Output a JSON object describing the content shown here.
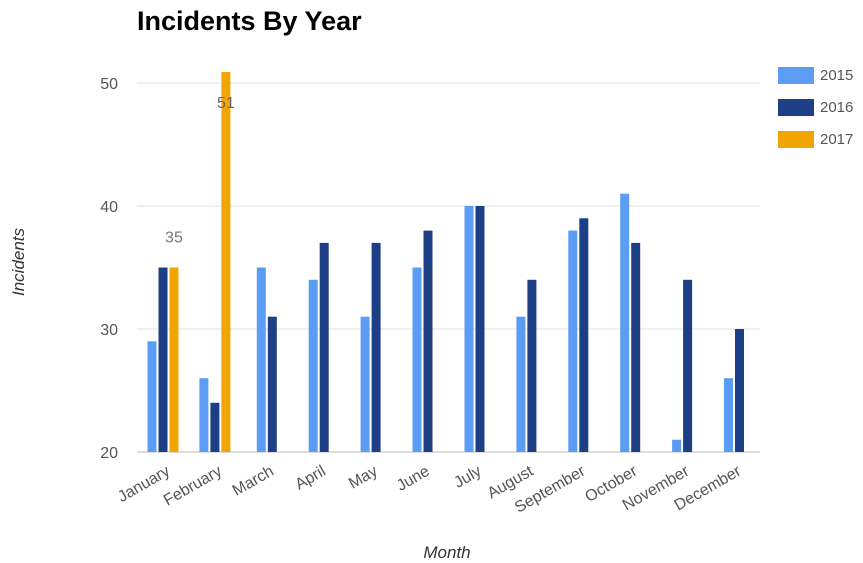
{
  "chart_data": {
    "type": "bar",
    "title": "Incidents By Year",
    "xlabel": "Month",
    "ylabel": "Incidents",
    "ylim": [
      20,
      51
    ],
    "yticks": [
      20,
      30,
      40,
      50
    ],
    "grid": true,
    "legend_position": "right",
    "categories": [
      "January",
      "February",
      "March",
      "April",
      "May",
      "June",
      "July",
      "August",
      "September",
      "October",
      "November",
      "December"
    ],
    "series": [
      {
        "name": "2015",
        "color": "#5b9cf4",
        "values": [
          29,
          26,
          35,
          34,
          31,
          35,
          40,
          31,
          38,
          41,
          21,
          26
        ]
      },
      {
        "name": "2016",
        "color": "#1c3f86",
        "values": [
          35,
          24,
          31,
          37,
          37,
          38,
          40,
          34,
          39,
          37,
          34,
          30
        ]
      },
      {
        "name": "2017",
        "color": "#f0a500",
        "values": [
          35,
          51,
          null,
          null,
          null,
          null,
          null,
          null,
          null,
          null,
          null,
          null
        ]
      }
    ],
    "data_labels": [
      {
        "category": "January",
        "series": "2017",
        "text": "35"
      },
      {
        "category": "February",
        "series": "2017",
        "text": "51"
      }
    ]
  }
}
